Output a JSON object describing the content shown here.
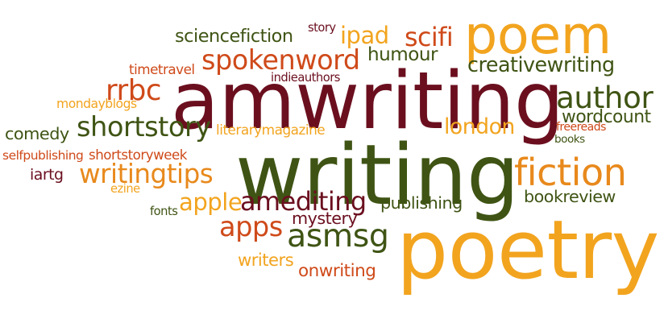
{
  "palette": {
    "maroon": "#6b0f1f",
    "olive": "#3f5414",
    "orange": "#e8891c",
    "amber": "#f2a41f",
    "rust": "#cf4a1a",
    "brown": "#8f2a1f"
  },
  "words": [
    {
      "text": "amwriting",
      "color": "maroon"
    },
    {
      "text": "writing",
      "color": "olive"
    },
    {
      "text": "poetry",
      "color": "amber"
    },
    {
      "text": "poem",
      "color": "amber"
    },
    {
      "text": "fiction",
      "color": "orange"
    },
    {
      "text": "shortstory",
      "color": "olive"
    },
    {
      "text": "asmsg",
      "color": "olive"
    },
    {
      "text": "author",
      "color": "olive"
    },
    {
      "text": "spokenword",
      "color": "rust"
    },
    {
      "text": "writingtips",
      "color": "orange"
    },
    {
      "text": "amediting",
      "color": "maroon"
    },
    {
      "text": "apps",
      "color": "rust"
    },
    {
      "text": "apple",
      "color": "amber"
    },
    {
      "text": "sciencefiction",
      "color": "olive"
    },
    {
      "text": "scifi",
      "color": "rust"
    },
    {
      "text": "ipad",
      "color": "amber"
    },
    {
      "text": "humour",
      "color": "olive"
    },
    {
      "text": "creativewriting",
      "color": "olive"
    },
    {
      "text": "rrbc",
      "color": "rust"
    },
    {
      "text": "london",
      "color": "amber"
    },
    {
      "text": "wordcount",
      "color": "olive"
    },
    {
      "text": "publishing",
      "color": "olive"
    },
    {
      "text": "bookreview",
      "color": "olive"
    },
    {
      "text": "mystery",
      "color": "maroon"
    },
    {
      "text": "writers",
      "color": "amber"
    },
    {
      "text": "onwriting",
      "color": "rust"
    },
    {
      "text": "comedy",
      "color": "olive"
    },
    {
      "text": "selfpublishing",
      "color": "rust"
    },
    {
      "text": "iartg",
      "color": "maroon"
    },
    {
      "text": "timetravel",
      "color": "rust"
    },
    {
      "text": "mondayblogs",
      "color": "amber"
    },
    {
      "text": "indieauthors",
      "color": "maroon"
    },
    {
      "text": "story",
      "color": "maroon"
    },
    {
      "text": "literarymagazine",
      "color": "amber"
    },
    {
      "text": "shortstoryweek",
      "color": "rust"
    },
    {
      "text": "ezine",
      "color": "amber"
    },
    {
      "text": "fonts",
      "color": "olive"
    },
    {
      "text": "freereads",
      "color": "rust"
    },
    {
      "text": "books",
      "color": "olive"
    }
  ]
}
